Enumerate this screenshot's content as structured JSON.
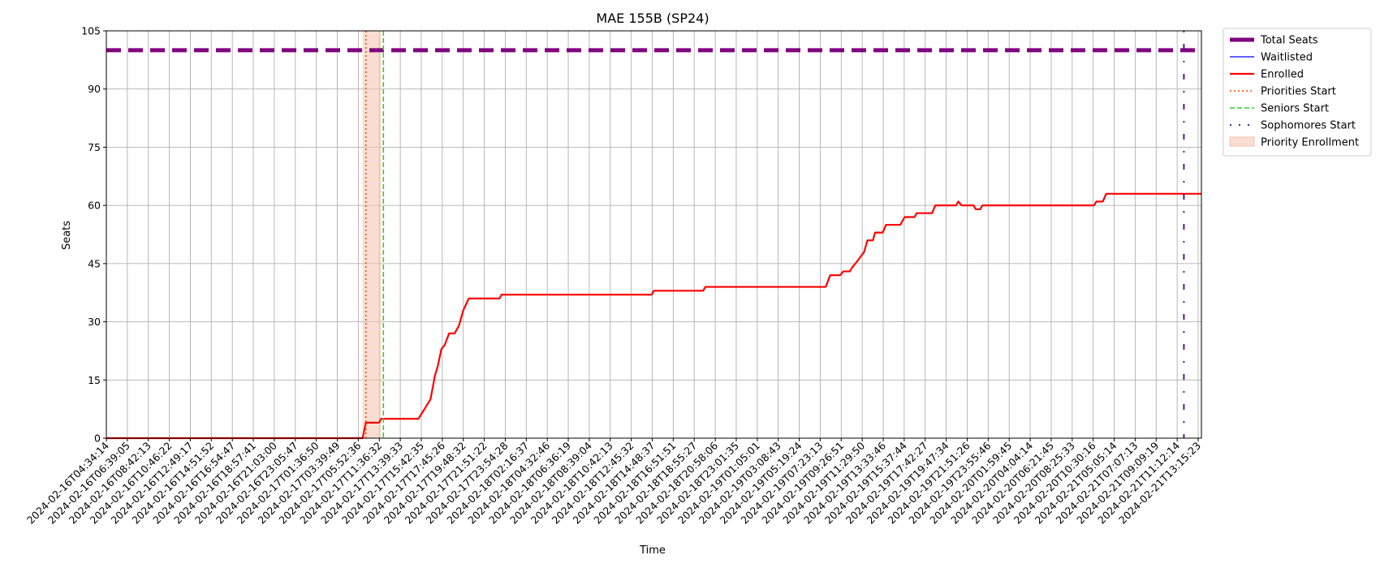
{
  "chart_data": {
    "type": "line",
    "title": "MAE 155B (SP24)",
    "xlabel": "Time",
    "ylabel": "Seats",
    "ylim": [
      0,
      105
    ],
    "xlim": [
      0,
      1000
    ],
    "y_ticks": [
      0,
      15,
      30,
      45,
      60,
      75,
      90,
      105
    ],
    "grid": true,
    "legend_position": "outside-upper-right",
    "x_tick_labels": [
      "2024-02-16T04:34:14",
      "2024-02-16T06:39:05",
      "2024-02-16T08:42:13",
      "2024-02-16T10:46:22",
      "2024-02-16T12:49:17",
      "2024-02-16T14:51:52",
      "2024-02-16T16:54:47",
      "2024-02-16T18:57:41",
      "2024-02-16T21:03:00",
      "2024-02-16T23:05:47",
      "2024-02-17T01:36:50",
      "2024-02-17T03:39:49",
      "2024-02-17T05:52:36",
      "2024-02-17T11:36:32",
      "2024-02-17T13:39:33",
      "2024-02-17T15:42:35",
      "2024-02-17T17:45:26",
      "2024-02-17T19:48:32",
      "2024-02-17T21:51:22",
      "2024-02-17T23:54:28",
      "2024-02-18T02:16:37",
      "2024-02-18T04:32:46",
      "2024-02-18T06:36:19",
      "2024-02-18T08:39:04",
      "2024-02-18T10:42:13",
      "2024-02-18T12:45:32",
      "2024-02-18T14:48:37",
      "2024-02-18T16:51:51",
      "2024-02-18T18:55:27",
      "2024-02-18T20:58:06",
      "2024-02-18T23:01:35",
      "2024-02-19T01:05:01",
      "2024-02-19T03:08:43",
      "2024-02-19T05:19:24",
      "2024-02-19T07:23:13",
      "2024-02-19T09:26:51",
      "2024-02-19T11:29:50",
      "2024-02-19T13:33:46",
      "2024-02-19T15:37:44",
      "2024-02-19T17:42:27",
      "2024-02-19T19:47:34",
      "2024-02-19T21:51:26",
      "2024-02-19T23:55:46",
      "2024-02-20T01:59:45",
      "2024-02-20T04:04:14",
      "2024-02-20T06:21:45",
      "2024-02-20T08:25:33",
      "2024-02-20T10:30:16",
      "2024-02-21T05:05:14",
      "2024-02-21T07:07:13",
      "2024-02-21T09:09:19",
      "2024-02-21T11:12:14",
      "2024-02-21T13:15:23"
    ],
    "series": [
      {
        "name": "Total Seats",
        "color": "#800080",
        "style": "dashed-thick",
        "points": [
          [
            0,
            100
          ],
          [
            1000,
            100
          ]
        ]
      },
      {
        "name": "Waitlisted",
        "color": "#0000ff",
        "style": "solid-thin",
        "points": []
      },
      {
        "name": "Enrolled",
        "color": "#ff0000",
        "style": "solid",
        "points": [
          [
            0,
            0
          ],
          [
            234,
            0
          ],
          [
            237,
            4
          ],
          [
            249,
            4
          ],
          [
            251,
            5
          ],
          [
            285,
            5
          ],
          [
            296,
            10
          ],
          [
            300,
            16
          ],
          [
            303,
            19
          ],
          [
            306,
            23
          ],
          [
            309,
            24
          ],
          [
            313,
            27
          ],
          [
            318,
            27
          ],
          [
            322,
            29
          ],
          [
            326,
            33
          ],
          [
            331,
            36
          ],
          [
            359,
            36
          ],
          [
            361,
            37
          ],
          [
            498,
            37
          ],
          [
            500,
            38
          ],
          [
            545,
            38
          ],
          [
            547,
            39
          ],
          [
            657,
            39
          ],
          [
            661,
            42
          ],
          [
            670,
            42
          ],
          [
            673,
            43
          ],
          [
            679,
            43
          ],
          [
            681,
            44
          ],
          [
            684,
            45
          ],
          [
            692,
            48
          ],
          [
            695,
            51
          ],
          [
            700,
            51
          ],
          [
            702,
            53
          ],
          [
            709,
            53
          ],
          [
            712,
            55
          ],
          [
            725,
            55
          ],
          [
            729,
            57
          ],
          [
            738,
            57
          ],
          [
            740,
            58
          ],
          [
            754,
            58
          ],
          [
            757,
            60
          ],
          [
            776,
            60
          ],
          [
            778,
            61
          ],
          [
            781,
            60
          ],
          [
            792,
            60
          ],
          [
            794,
            59
          ],
          [
            798,
            59
          ],
          [
            800,
            60
          ],
          [
            902,
            60
          ],
          [
            904,
            61
          ],
          [
            910,
            61
          ],
          [
            913,
            63
          ],
          [
            1000,
            63
          ]
        ]
      }
    ],
    "vertical_lines": [
      {
        "name": "Priorities Start",
        "x": 237,
        "color": "#ff4500",
        "style": "dotted"
      },
      {
        "name": "Seniors Start",
        "x": 253,
        "color": "#32cd32",
        "style": "dashed"
      },
      {
        "name": "Sophomores Start",
        "x": 984,
        "color": "#4b0082",
        "style": "dashdot-sparse"
      }
    ],
    "shaded_regions": [
      {
        "name": "Priority Enrollment",
        "x_start": 234,
        "x_end": 251,
        "color": "#f4c2ab",
        "opacity": 0.55
      }
    ],
    "legend": [
      {
        "label": "Total Seats",
        "color": "#800080",
        "kind": "thick-dash"
      },
      {
        "label": "Waitlisted",
        "color": "#0000ff",
        "kind": "line"
      },
      {
        "label": "Enrolled",
        "color": "#ff0000",
        "kind": "line-thick"
      },
      {
        "label": "Priorities Start",
        "color": "#ff4500",
        "kind": "dotted"
      },
      {
        "label": "Seniors Start",
        "color": "#32cd32",
        "kind": "dashed"
      },
      {
        "label": "Sophomores Start",
        "color": "#4b0082",
        "kind": "dashdot"
      },
      {
        "label": "Priority Enrollment",
        "color": "#f4c2ab",
        "kind": "patch"
      }
    ]
  }
}
